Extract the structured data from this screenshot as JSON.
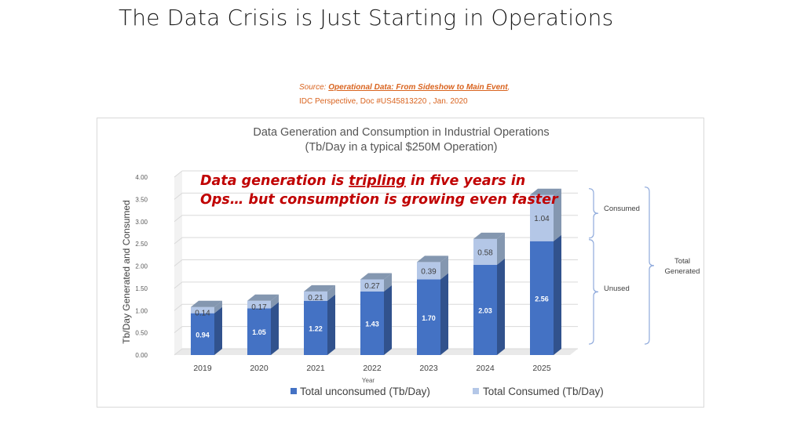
{
  "slide": {
    "title": "The Data Crisis is Just Starting in Operations",
    "source_prefix": "Source: ",
    "source_link": "Operational Data: From Sideshow to Main Event",
    "source_suffix": ",",
    "source_line2": "IDC Perspective, Doc #US45813220 , Jan. 2020"
  },
  "colors": {
    "unconsumed": "#4472c4",
    "consumed": "#b4c7e7",
    "annotation": "#c00000",
    "source": "#d9631e"
  },
  "chart_data": {
    "type": "bar",
    "stacked": true,
    "three_d": true,
    "title": "Data Generation and Consumption in Industrial Operations",
    "subtitle": "(Tb/Day in a typical $250M Operation)",
    "xlabel": "Year",
    "ylabel": "Tb/Day Generated and Consumed",
    "ylim": [
      0,
      4
    ],
    "y_ticks": [
      "0.00",
      "0.50",
      "1.00",
      "1.50",
      "2.00",
      "2.50",
      "3.00",
      "3.50",
      "4.00"
    ],
    "grid": true,
    "categories": [
      "2019",
      "2020",
      "2021",
      "2022",
      "2023",
      "2024",
      "2025"
    ],
    "series": [
      {
        "name": "Total unconsumed (Tb/Day)",
        "values": [
          0.94,
          1.05,
          1.22,
          1.43,
          1.7,
          2.03,
          2.56
        ]
      },
      {
        "name": "Total Consumed (Tb/Day)",
        "values": [
          0.14,
          0.17,
          0.21,
          0.27,
          0.39,
          0.58,
          1.04
        ]
      }
    ],
    "value_labels": {
      "unconsumed": [
        "0.94",
        "1.05",
        "1.22",
        "1.43",
        "1.70",
        "2.03",
        "2.56"
      ],
      "consumed": [
        "0.14",
        "0.17",
        "0.21",
        "0.27",
        "0.39",
        "0.58",
        "1.04"
      ]
    },
    "legend_position": "bottom",
    "annotation_lines": [
      "Data generation is tripling in five years in",
      "Ops… but consumption is growing even faster"
    ],
    "annotation_underline_word": "tripling",
    "brace_labels": {
      "consumed": "Consumed",
      "unused": "Unused",
      "total_line1": "Total",
      "total_line2": "Generated"
    }
  }
}
